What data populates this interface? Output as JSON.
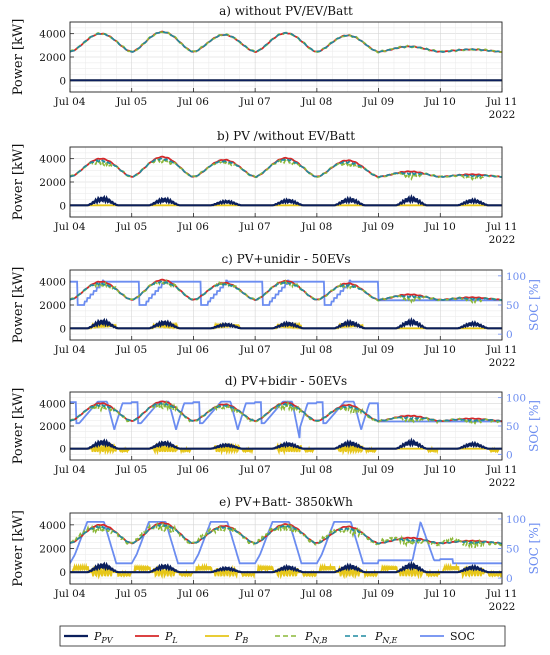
{
  "chart_data": [
    {
      "type": "line",
      "title": "a) without PV/EV/Batt",
      "ylabel": "Power [kW]",
      "y2label": "",
      "ylim": [
        -1000,
        5000
      ],
      "yticks": [
        0,
        2000,
        4000
      ],
      "xticks": [
        "Jul 04",
        "Jul 05",
        "Jul 06",
        "Jul 07",
        "Jul 08",
        "Jul 09",
        "Jul 10",
        "Jul 11"
      ],
      "year": "2022",
      "series": {
        "P_L": {
          "peaks": [
            4000,
            4150,
            3900,
            4050,
            3850,
            2900,
            2650
          ],
          "base": 2450
        },
        "P_PV": {
          "peaks": [
            0,
            0,
            0,
            0,
            0,
            0,
            0
          ]
        },
        "P_B": "zero",
        "SOC": null
      }
    },
    {
      "type": "line",
      "title": "b) PV /without EV/Batt",
      "ylabel": "Power [kW]",
      "y2label": "",
      "ylim": [
        -1000,
        5000
      ],
      "yticks": [
        0,
        2000,
        4000
      ],
      "xticks": [
        "Jul 04",
        "Jul 05",
        "Jul 06",
        "Jul 07",
        "Jul 08",
        "Jul 09",
        "Jul 10",
        "Jul 11"
      ],
      "year": "2022",
      "series": {
        "P_L": {
          "peaks": [
            4000,
            4150,
            3900,
            4050,
            3850,
            2900,
            2650
          ],
          "base": 2450
        },
        "P_PV": {
          "peaks": [
            700,
            600,
            400,
            500,
            600,
            700,
            500
          ]
        },
        "P_B": "zero",
        "SOC": null
      }
    },
    {
      "type": "line",
      "title": "c) PV+unidir - 50EVs",
      "ylabel": "Power [kW]",
      "y2label": "SOC [%]",
      "ylim": [
        -1000,
        5000
      ],
      "yticks": [
        0,
        2000,
        4000
      ],
      "y2ticks": [
        0,
        50,
        100
      ],
      "xticks": [
        "Jul 04",
        "Jul 05",
        "Jul 06",
        "Jul 07",
        "Jul 08",
        "Jul 09",
        "Jul 10",
        "Jul 11"
      ],
      "year": "2022",
      "series": {
        "P_L": {
          "peaks": [
            4000,
            4150,
            3900,
            4050,
            3850,
            2900,
            2650
          ],
          "base": 2450
        },
        "P_PV": {
          "peaks": [
            700,
            600,
            400,
            500,
            600,
            700,
            500
          ]
        },
        "P_B": "unidir",
        "SOC": "unidir"
      }
    },
    {
      "type": "line",
      "title": "d) PV+bidir - 50EVs",
      "ylabel": "Power [kW]",
      "y2label": "SOC [%]",
      "ylim": [
        -1000,
        5000
      ],
      "yticks": [
        0,
        2000,
        4000
      ],
      "y2ticks": [
        0,
        50,
        100
      ],
      "xticks": [
        "Jul 04",
        "Jul 05",
        "Jul 06",
        "Jul 07",
        "Jul 08",
        "Jul 09",
        "Jul 10",
        "Jul 11"
      ],
      "year": "2022",
      "series": {
        "P_L": {
          "peaks": [
            4000,
            4150,
            3900,
            4050,
            3850,
            2900,
            2650
          ],
          "base": 2450
        },
        "P_PV": {
          "peaks": [
            700,
            600,
            400,
            500,
            600,
            700,
            500
          ]
        },
        "P_B": "bidir",
        "SOC": "bidir"
      }
    },
    {
      "type": "line",
      "title": "e) PV+Batt- 3850kWh",
      "ylabel": "Power [kW]",
      "y2label": "SOC [%]",
      "ylim": [
        -1000,
        5000
      ],
      "yticks": [
        0,
        2000,
        4000
      ],
      "y2ticks": [
        0,
        50,
        100
      ],
      "xticks": [
        "Jul 04",
        "Jul 05",
        "Jul 06",
        "Jul 07",
        "Jul 08",
        "Jul 09",
        "Jul 10",
        "Jul 11"
      ],
      "year": "2022",
      "series": {
        "P_L": {
          "peaks": [
            4000,
            4150,
            3900,
            4050,
            3850,
            2900,
            2650
          ],
          "base": 2450
        },
        "P_PV": {
          "peaks": [
            700,
            600,
            400,
            500,
            600,
            700,
            500
          ]
        },
        "P_B": "batt",
        "SOC": "batt"
      }
    }
  ],
  "legend": [
    {
      "key": "P_PV",
      "label": "P",
      "sub": "PV",
      "color": "#0b1f5c",
      "dash": "",
      "width": 2.2
    },
    {
      "key": "P_L",
      "label": "P",
      "sub": "L",
      "color": "#d62728",
      "dash": "",
      "width": 1.8
    },
    {
      "key": "P_B",
      "label": "P",
      "sub": "B",
      "color": "#e6c619",
      "dash": "",
      "width": 1.8
    },
    {
      "key": "P_NB",
      "label": "P",
      "sub": "N,B",
      "color": "#8cb838",
      "dash": "5,3",
      "width": 1.6
    },
    {
      "key": "P_NE",
      "label": "P",
      "sub": "N,E",
      "color": "#1f8aa0",
      "dash": "5,3",
      "width": 1.6
    },
    {
      "key": "SOC",
      "label": "SOC",
      "sub": "",
      "color": "#6b8cf0",
      "dash": "",
      "width": 1.8
    }
  ]
}
